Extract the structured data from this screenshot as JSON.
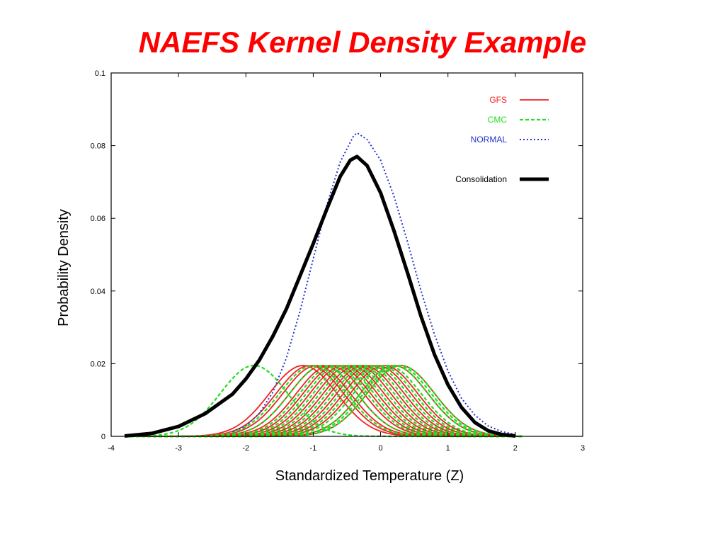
{
  "slide": {
    "title": "NAEFS Kernel Density Example"
  },
  "chart_data": {
    "type": "line",
    "title": "NAEFS Kernel Density Example",
    "xlabel": "Standardized Temperature (Z)",
    "ylabel": "Probability Density",
    "xlim": [
      -4,
      3
    ],
    "ylim": [
      0,
      0.1
    ],
    "x_ticks": [
      "-4",
      "-3",
      "-2",
      "-1",
      "0",
      "1",
      "2",
      "3"
    ],
    "y_ticks": [
      "0",
      "0.02",
      "0.04",
      "0.06",
      "0.08",
      "0.1"
    ],
    "grid": false,
    "legend_position": "top-right",
    "legend": [
      {
        "label": "GFS",
        "color": "#ee2222",
        "style": "solid"
      },
      {
        "label": "CMC",
        "color": "#22dd22",
        "style": "dashed"
      },
      {
        "label": "NORMAL",
        "color": "#2233cc",
        "style": "dotted"
      },
      {
        "label": "Consolidation",
        "color": "#000000",
        "style": "thick-solid"
      }
    ],
    "series": [
      {
        "name": "GFS",
        "color": "#ee2222",
        "style": "solid",
        "kernel": {
          "amplitude": 0.0195,
          "bandwidth": 0.5
        },
        "centers": [
          -1.15,
          -1.05,
          -0.95,
          -0.85,
          -0.75,
          -0.65,
          -0.55,
          -0.45,
          -0.35,
          -0.25,
          -0.15,
          -0.05,
          0.05,
          0.2,
          0.3
        ]
      },
      {
        "name": "CMC",
        "color": "#22dd22",
        "style": "dashed",
        "kernel": {
          "amplitude": 0.0195,
          "bandwidth": 0.5
        },
        "centers": [
          -1.88,
          -1.0,
          -0.85,
          -0.7,
          -0.6,
          -0.5,
          -0.4,
          -0.3,
          -0.2,
          -0.1,
          0.0,
          0.1,
          0.2,
          0.25,
          0.3
        ]
      },
      {
        "name": "NORMAL",
        "color": "#2233cc",
        "style": "dotted",
        "x": [
          -2.2,
          -2.0,
          -1.8,
          -1.6,
          -1.4,
          -1.2,
          -1.0,
          -0.8,
          -0.6,
          -0.4,
          -0.35,
          -0.2,
          0.0,
          0.2,
          0.4,
          0.6,
          0.8,
          1.0,
          1.2,
          1.4,
          1.6,
          1.8,
          2.0
        ],
        "y": [
          0.0013,
          0.0029,
          0.0063,
          0.0121,
          0.0215,
          0.0342,
          0.0488,
          0.0636,
          0.0755,
          0.0827,
          0.0835,
          0.0817,
          0.076,
          0.066,
          0.0535,
          0.04,
          0.028,
          0.018,
          0.0105,
          0.0058,
          0.0028,
          0.0013,
          0.0005
        ]
      },
      {
        "name": "Consolidation",
        "color": "#000000",
        "style": "thick-solid",
        "x": [
          -3.8,
          -3.4,
          -3.0,
          -2.6,
          -2.2,
          -2.0,
          -1.8,
          -1.6,
          -1.4,
          -1.2,
          -1.0,
          -0.8,
          -0.6,
          -0.45,
          -0.35,
          -0.2,
          0.0,
          0.2,
          0.4,
          0.6,
          0.8,
          1.0,
          1.2,
          1.4,
          1.6,
          1.8,
          2.0
        ],
        "y": [
          0.0001,
          0.0008,
          0.0027,
          0.0063,
          0.0116,
          0.0158,
          0.021,
          0.0275,
          0.035,
          0.044,
          0.053,
          0.0625,
          0.0715,
          0.076,
          0.077,
          0.0745,
          0.067,
          0.0565,
          0.045,
          0.033,
          0.0225,
          0.0142,
          0.008,
          0.0038,
          0.0015,
          0.0005,
          0.0001
        ]
      }
    ]
  }
}
